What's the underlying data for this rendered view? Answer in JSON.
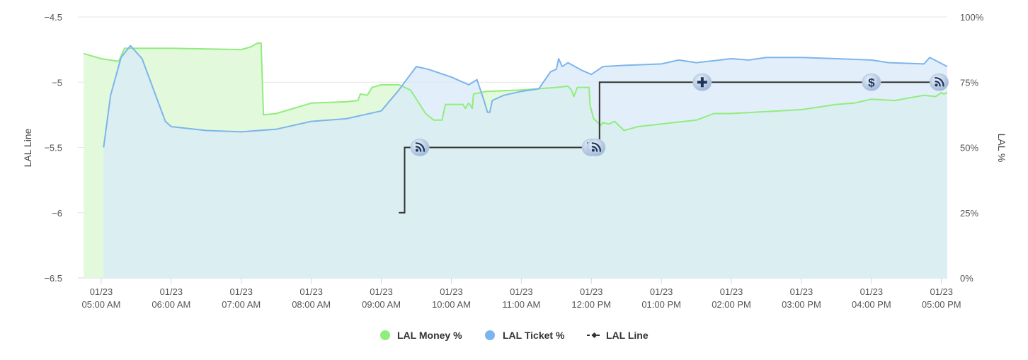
{
  "chart_data": {
    "type": "area",
    "y_left": {
      "label": "LAL Line",
      "range": [
        -6.5,
        -4.5
      ],
      "ticks": [
        -4.5,
        -5,
        -5.5,
        -6,
        -6.5
      ],
      "tick_labels": [
        "−4.5",
        "−5",
        "−5.5",
        "−6",
        "−6.5"
      ]
    },
    "y_right": {
      "label": "LAL %",
      "range": [
        0,
        100
      ],
      "ticks": [
        100,
        75,
        50,
        25,
        0
      ],
      "tick_labels": [
        "100%",
        "75%",
        "50%",
        "25%",
        "0%"
      ]
    },
    "x_axis": {
      "range": [
        "01/23 04:40 AM",
        "01/23 05:05 PM"
      ],
      "ticks": [
        {
          "date": "01/23",
          "time": "05:00 AM"
        },
        {
          "date": "01/23",
          "time": "06:00 AM"
        },
        {
          "date": "01/23",
          "time": "07:00 AM"
        },
        {
          "date": "01/23",
          "time": "08:00 AM"
        },
        {
          "date": "01/23",
          "time": "09:00 AM"
        },
        {
          "date": "01/23",
          "time": "10:00 AM"
        },
        {
          "date": "01/23",
          "time": "11:00 AM"
        },
        {
          "date": "01/23",
          "time": "12:00 PM"
        },
        {
          "date": "01/23",
          "time": "01:00 PM"
        },
        {
          "date": "01/23",
          "time": "02:00 PM"
        },
        {
          "date": "01/23",
          "time": "03:00 PM"
        },
        {
          "date": "01/23",
          "time": "04:00 PM"
        },
        {
          "date": "01/23",
          "time": "05:00 PM"
        }
      ]
    },
    "grid": true,
    "legend_position": "bottom-center",
    "series": [
      {
        "name": "LAL Money %",
        "type": "area",
        "axis": "right",
        "color": "#90ed7d",
        "fill": "#e3f9dc",
        "points": [
          [
            "04:45",
            86.0
          ],
          [
            "05:00",
            84.0
          ],
          [
            "05:15",
            83.0
          ],
          [
            "05:20",
            88.0
          ],
          [
            "06:00",
            88.0
          ],
          [
            "07:00",
            87.5
          ],
          [
            "07:08",
            88.5
          ],
          [
            "07:14",
            90.0
          ],
          [
            "07:17",
            90.0
          ],
          [
            "07:19",
            62.5
          ],
          [
            "07:30",
            63.0
          ],
          [
            "08:00",
            67.0
          ],
          [
            "08:30",
            67.5
          ],
          [
            "08:40",
            68.0
          ],
          [
            "08:42",
            70.5
          ],
          [
            "08:48",
            70.0
          ],
          [
            "08:52",
            73.0
          ],
          [
            "09:00",
            74.0
          ],
          [
            "09:15",
            74.0
          ],
          [
            "09:25",
            72.0
          ],
          [
            "09:38",
            63.0
          ],
          [
            "09:45",
            60.5
          ],
          [
            "09:52",
            60.5
          ],
          [
            "09:55",
            66.5
          ],
          [
            "10:10",
            66.5
          ],
          [
            "10:12",
            65.0
          ],
          [
            "10:14",
            66.5
          ],
          [
            "10:15",
            67.0
          ],
          [
            "10:18",
            65.0
          ],
          [
            "10:19",
            70.5
          ],
          [
            "10:30",
            71.5
          ],
          [
            "11:00",
            72.0
          ],
          [
            "11:30",
            73.0
          ],
          [
            "11:40",
            73.5
          ],
          [
            "11:43",
            72.0
          ],
          [
            "11:45",
            69.5
          ],
          [
            "11:48",
            73.0
          ],
          [
            "11:58",
            73.0
          ],
          [
            "11:59",
            66.0
          ],
          [
            "12:02",
            61.0
          ],
          [
            "12:08",
            58.5
          ],
          [
            "12:10",
            59.5
          ],
          [
            "12:15",
            59.0
          ],
          [
            "12:20",
            60.0
          ],
          [
            "12:28",
            56.5
          ],
          [
            "12:40",
            58.0
          ],
          [
            "13:00",
            59.0
          ],
          [
            "13:30",
            60.5
          ],
          [
            "13:45",
            63.0
          ],
          [
            "14:00",
            63.0
          ],
          [
            "15:00",
            64.5
          ],
          [
            "15:30",
            66.5
          ],
          [
            "15:45",
            67.0
          ],
          [
            "16:00",
            68.5
          ],
          [
            "16:20",
            68.0
          ],
          [
            "16:45",
            70.0
          ],
          [
            "16:55",
            69.5
          ],
          [
            "17:00",
            71.0
          ],
          [
            "17:02",
            70.5
          ],
          [
            "17:05",
            71.0
          ]
        ]
      },
      {
        "name": "LAL Ticket %",
        "type": "area",
        "axis": "right",
        "color": "#7cb5ec",
        "fill": "#d8e9f8",
        "points": [
          [
            "05:02",
            50.0
          ],
          [
            "05:08",
            70.0
          ],
          [
            "05:17",
            84.5
          ],
          [
            "05:25",
            89.0
          ],
          [
            "05:35",
            84.0
          ],
          [
            "05:45",
            72.0
          ],
          [
            "05:55",
            60.0
          ],
          [
            "06:00",
            58.0
          ],
          [
            "06:30",
            56.5
          ],
          [
            "07:00",
            56.0
          ],
          [
            "07:30",
            57.0
          ],
          [
            "08:00",
            60.0
          ],
          [
            "08:30",
            61.0
          ],
          [
            "09:00",
            64.0
          ],
          [
            "09:15",
            72.0
          ],
          [
            "09:30",
            81.0
          ],
          [
            "09:40",
            80.0
          ],
          [
            "10:00",
            77.0
          ],
          [
            "10:15",
            74.0
          ],
          [
            "10:22",
            76.0
          ],
          [
            "10:28",
            68.0
          ],
          [
            "10:31",
            63.5
          ],
          [
            "10:33",
            63.5
          ],
          [
            "10:35",
            68.0
          ],
          [
            "10:45",
            70.0
          ],
          [
            "11:00",
            71.5
          ],
          [
            "11:15",
            72.5
          ],
          [
            "11:25",
            79.0
          ],
          [
            "11:30",
            80.0
          ],
          [
            "11:32",
            84.0
          ],
          [
            "11:35",
            81.0
          ],
          [
            "11:40",
            82.5
          ],
          [
            "11:52",
            79.5
          ],
          [
            "12:00",
            78.0
          ],
          [
            "12:10",
            81.0
          ],
          [
            "12:30",
            81.5
          ],
          [
            "13:00",
            82.0
          ],
          [
            "13:15",
            83.5
          ],
          [
            "13:30",
            82.5
          ],
          [
            "14:00",
            84.0
          ],
          [
            "14:15",
            83.5
          ],
          [
            "14:30",
            84.5
          ],
          [
            "15:00",
            84.5
          ],
          [
            "15:30",
            84.0
          ],
          [
            "16:00",
            83.5
          ],
          [
            "16:15",
            82.5
          ],
          [
            "16:45",
            82.0
          ],
          [
            "16:50",
            84.5
          ],
          [
            "17:05",
            81.0
          ]
        ]
      },
      {
        "name": "LAL Line",
        "type": "step",
        "axis": "left",
        "color": "#333333",
        "points": [
          [
            "09:15",
            -6.0
          ],
          [
            "09:20",
            -6.0
          ],
          [
            "09:20",
            -5.5
          ],
          [
            "12:07",
            -5.5
          ],
          [
            "12:07",
            -5.0
          ],
          [
            "17:05",
            -5.0
          ]
        ]
      }
    ],
    "event_icons": [
      {
        "icon": "rss-icon",
        "time": "09:33",
        "line": -5.5
      },
      {
        "icon": "rss-icon",
        "time": "12:00",
        "line": -5.5
      },
      {
        "icon": "rss-icon",
        "time": "12:04",
        "line": -5.5
      },
      {
        "icon": "plus-icon",
        "time": "13:35",
        "line": -5.0
      },
      {
        "icon": "dollar-icon",
        "time": "16:00",
        "line": -5.0
      },
      {
        "icon": "rss-icon",
        "time": "16:58",
        "line": -5.0
      }
    ]
  }
}
